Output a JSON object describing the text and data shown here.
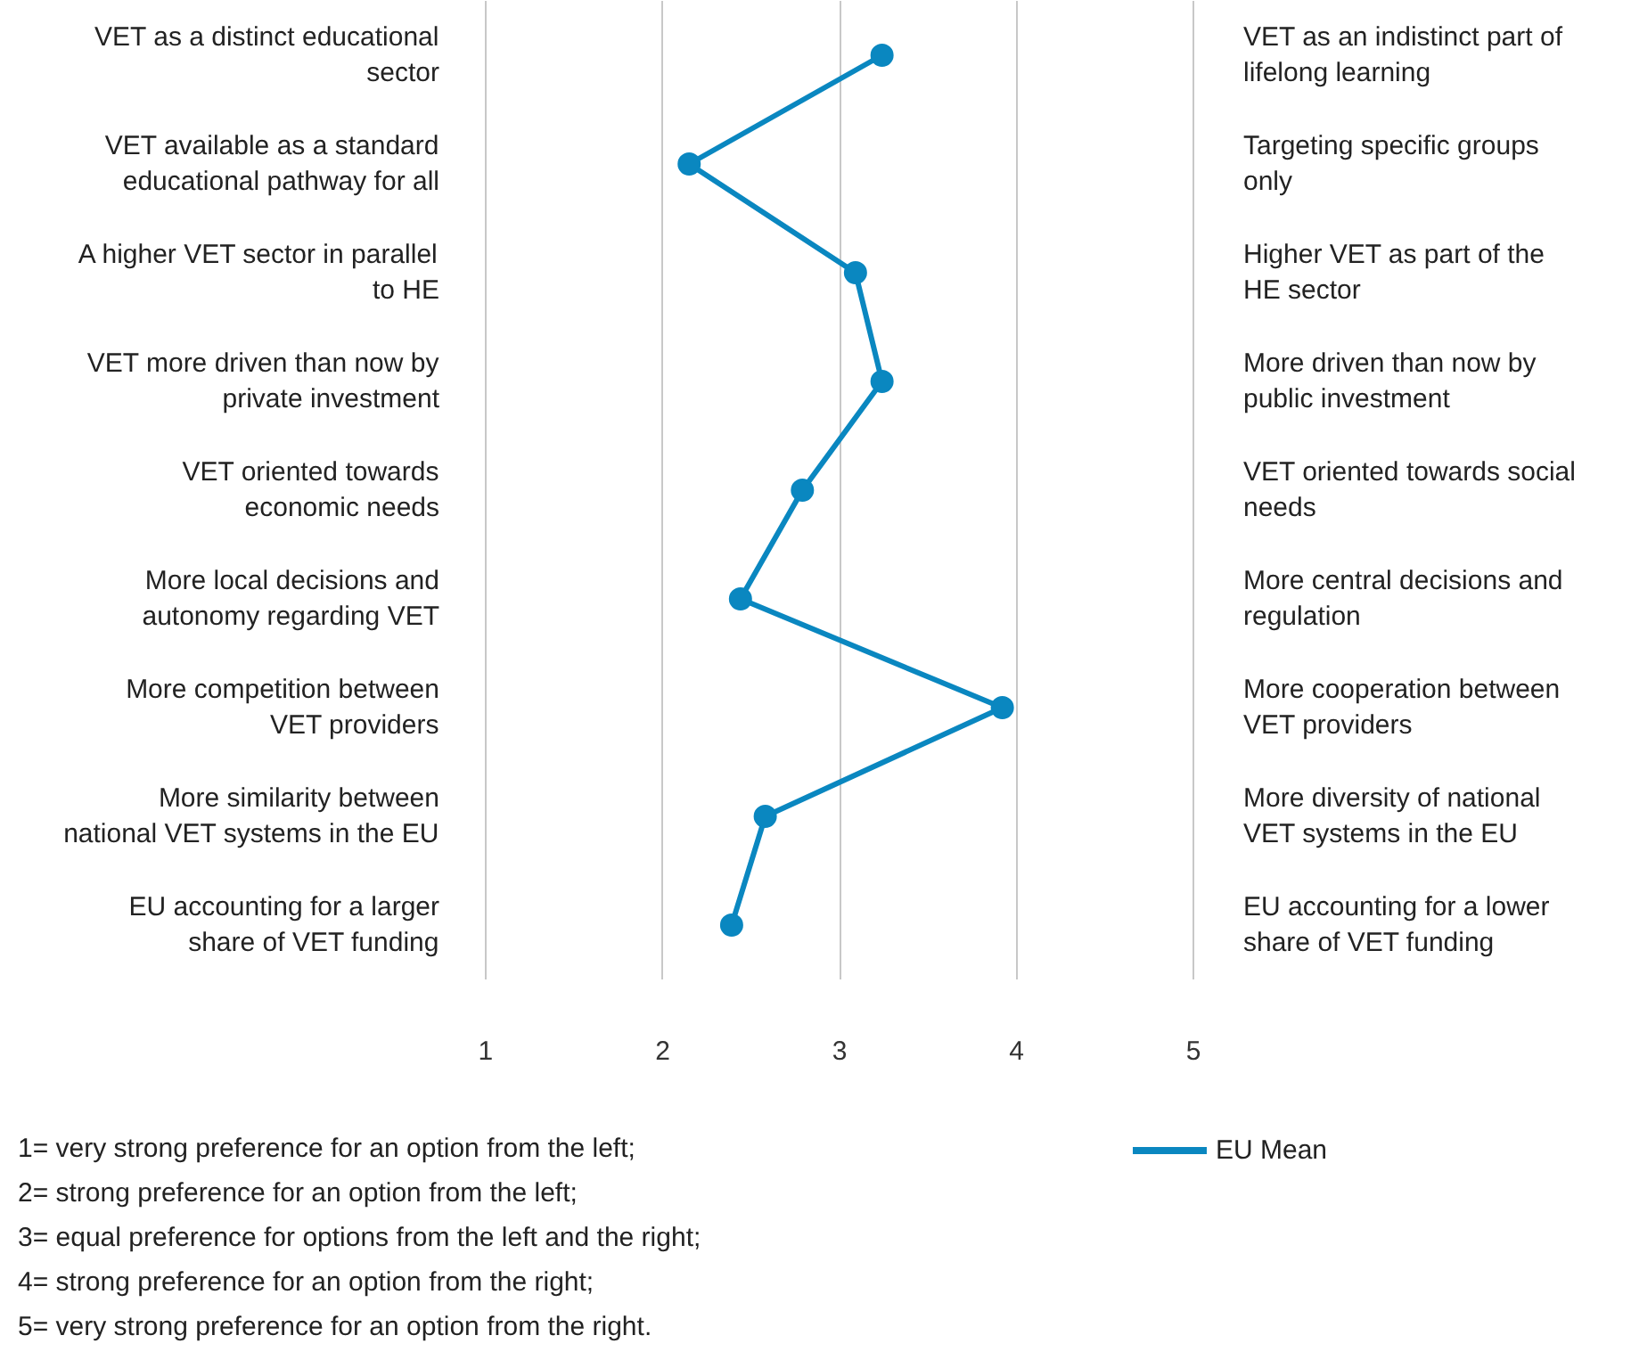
{
  "chart_data": {
    "type": "line",
    "orientation": "horizontal",
    "categories": [
      "VET as a distinct educational\nsector",
      "VET available as a standard\neducational pathway for all",
      "A higher VET sector in parallel\nto HE",
      "VET more driven than now by\nprivate investment",
      "VET oriented towards\neconomic needs",
      "More local decisions and\nautonomy regarding VET",
      "More competition between\nVET providers",
      "More similarity between\nnational VET systems in the EU",
      "EU accounting for a larger\nshare of VET funding"
    ],
    "y2_categories": [
      "VET as an indistinct part of\nlifelong learning",
      "Targeting specific groups\nonly",
      "Higher VET as part of the\nHE sector",
      "More driven than now by\npublic investment",
      "VET oriented towards social\nneeds",
      "More central decisions and\nregulation",
      "More cooperation between\nVET providers",
      "More diversity of national\nVET systems in the EU",
      "EU accounting for a lower\nshare of VET funding"
    ],
    "series": [
      {
        "name": "EU Mean",
        "color": "#0a87c0",
        "values": [
          3.24,
          2.15,
          3.09,
          3.24,
          2.79,
          2.44,
          3.92,
          2.58,
          2.39
        ]
      }
    ],
    "xlim": [
      1,
      5
    ],
    "xticks": [
      1,
      2,
      3,
      4,
      5
    ],
    "grid": "x",
    "legend": "bottom right",
    "marker": "circle",
    "line_style": "solid",
    "annotations": [
      "1= very strong preference for an option from the left;",
      "2= strong preference for an option from the left;",
      "3= equal preference for options from the left and the right;",
      "4= strong preference for an option from the right;",
      "5= very strong preference for an option from the right."
    ]
  }
}
